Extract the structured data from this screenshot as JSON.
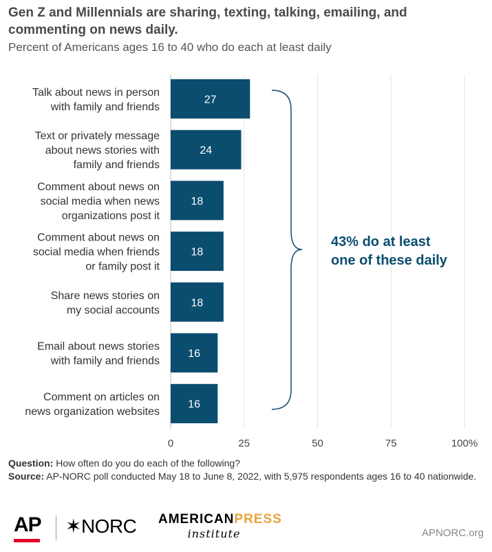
{
  "header": {
    "title": "Gen Z and Millennials are sharing, texting, talking, emailing, and commenting on news daily.",
    "subtitle": "Percent of Americans ages 16 to 40 who do each at least daily"
  },
  "chart_data": {
    "type": "bar",
    "orientation": "horizontal",
    "categories": [
      [
        "Talk about news in person",
        "with family and friends"
      ],
      [
        "Text or privately message",
        "about news stories with",
        "family and friends"
      ],
      [
        "Comment about news on",
        "social media when news",
        "organizations post it"
      ],
      [
        "Comment about news on",
        "social media when friends",
        "or family post it"
      ],
      [
        "Share news stories on",
        "my social accounts"
      ],
      [
        "Email about news stories",
        "with family and friends"
      ],
      [
        "Comment on articles on",
        "news organization websites"
      ]
    ],
    "values": [
      27,
      24,
      18,
      18,
      18,
      16,
      16
    ],
    "value_labels": [
      "27",
      "24",
      "18",
      "18",
      "18",
      "16",
      "16"
    ],
    "xlim": [
      0,
      100
    ],
    "x_ticks": [
      0,
      25,
      50,
      75,
      100
    ],
    "x_tick_labels": [
      "0",
      "25",
      "50",
      "75",
      "100%"
    ],
    "grid": true,
    "bar_color": "#0a4d6e",
    "annotation": {
      "lines": [
        "43% do at least",
        "one of these daily"
      ],
      "color": "#0a4d6e"
    }
  },
  "footer": {
    "question_label": "Question:",
    "question_text": " How often do you do each of the following?",
    "source_label": "Source:",
    "source_text": " AP-NORC poll conducted May 18 to June 8, 2022, with 5,975 respondents ages 16 to 40 nationwide."
  },
  "logos": {
    "ap": "AP",
    "norc": "✶NORC",
    "api_line1_a": "AMERICAN",
    "api_line1_b": "PRESS",
    "api_line2": "institute",
    "site": "APNORC.org"
  }
}
